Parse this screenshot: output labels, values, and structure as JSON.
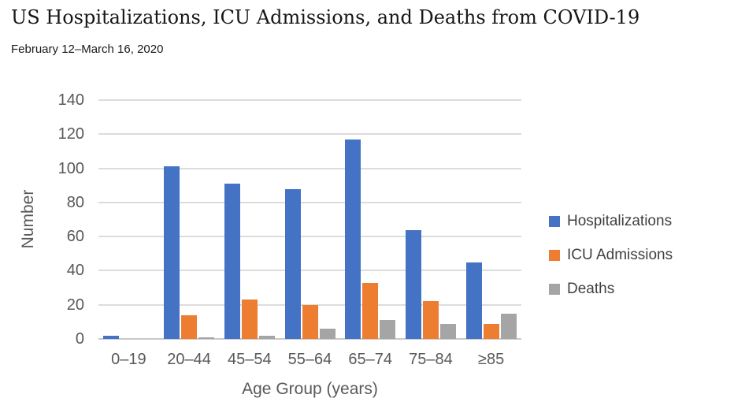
{
  "header": {
    "title": "US Hospitalizations, ICU Admissions, and Deaths from COVID-19",
    "subtitle": "February 12–March 16, 2020"
  },
  "chart_data": {
    "type": "bar",
    "title": "US Hospitalizations, ICU Admissions, and Deaths from COVID-19",
    "subtitle": "February 12–March 16, 2020",
    "categories": [
      "0–19",
      "20–44",
      "45–54",
      "55–64",
      "65–74",
      "75–84",
      "≥85"
    ],
    "series": [
      {
        "name": "Hospitalizations",
        "color": "#4472C4",
        "values": [
          2,
          101,
          91,
          88,
          117,
          64,
          45
        ]
      },
      {
        "name": "ICU Admissions",
        "color": "#ED7D31",
        "values": [
          0,
          14,
          23,
          20,
          33,
          22,
          9
        ]
      },
      {
        "name": "Deaths",
        "color": "#A5A5A5",
        "values": [
          0,
          1,
          2,
          6,
          11,
          9,
          15
        ]
      }
    ],
    "xlabel": "Age Group (years)",
    "ylabel": "Number",
    "ylim": [
      0,
      140
    ],
    "yticks": [
      0,
      20,
      40,
      60,
      80,
      100,
      120,
      140
    ],
    "grid": true,
    "gridline_color": "#dcdcdc",
    "legend_position": "right"
  }
}
